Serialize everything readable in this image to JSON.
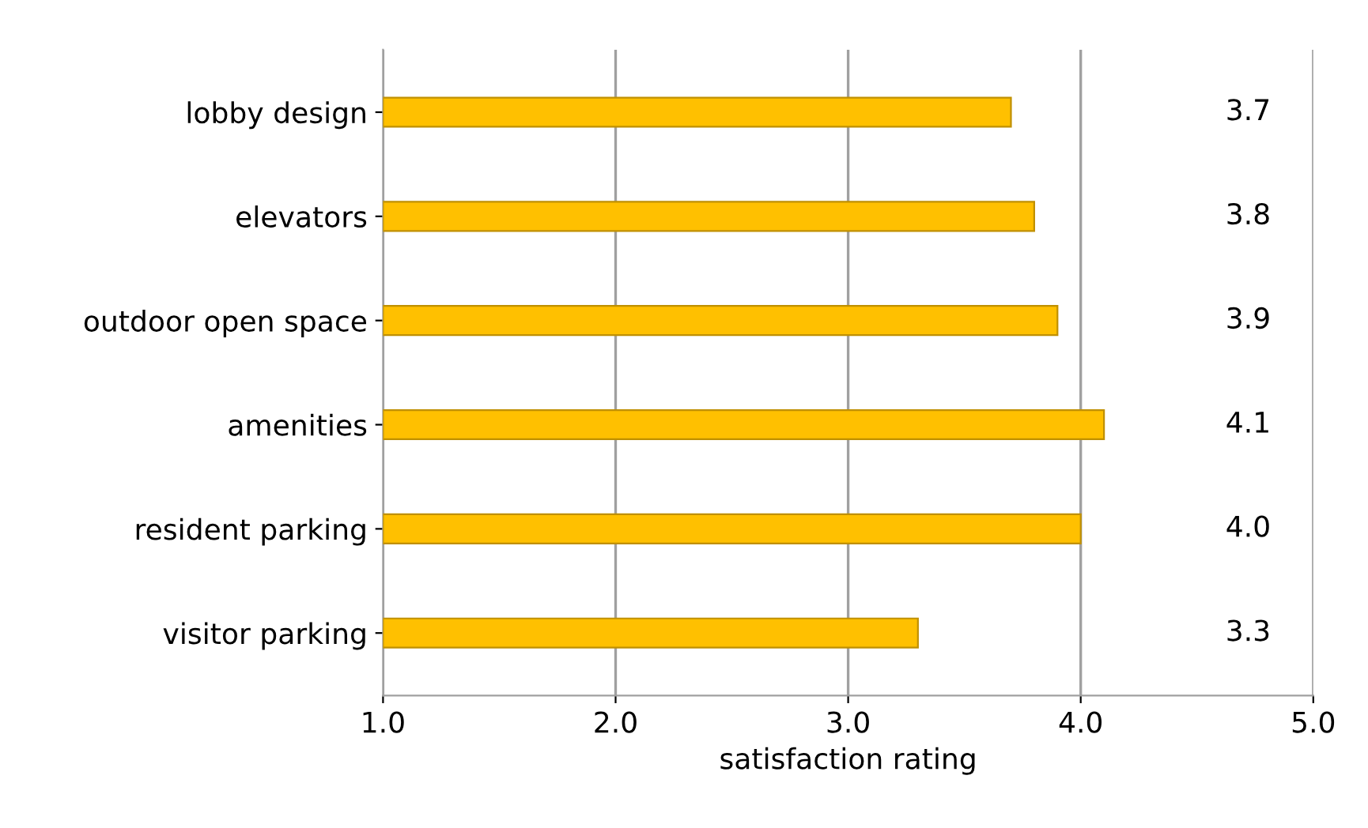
{
  "chart_data": {
    "type": "bar",
    "orientation": "horizontal",
    "xlabel": "satisfaction rating",
    "categories": [
      "lobby design",
      "elevators",
      "outdoor open space",
      "amenities",
      "resident parking",
      "visitor parking"
    ],
    "values": [
      3.7,
      3.8,
      3.9,
      4.1,
      4.0,
      3.3
    ],
    "color": "#ffc000",
    "xlim": [
      1.0,
      5.0
    ],
    "xticks": [
      {
        "value": 1,
        "label": "1.0"
      },
      {
        "value": 2,
        "label": "2.0"
      },
      {
        "value": 3,
        "label": "3.0"
      },
      {
        "value": 4,
        "label": "4.0"
      },
      {
        "value": 5,
        "label": "5.0"
      }
    ],
    "grid": "x",
    "annotations": [
      "3.7",
      "3.8",
      "3.9",
      "4.1",
      "4.0",
      "3.3"
    ]
  }
}
